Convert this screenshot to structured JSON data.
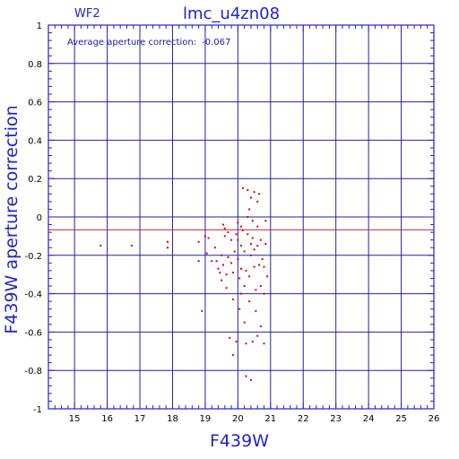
{
  "chart_data": {
    "type": "scatter",
    "panel_label": "WF2",
    "title": "lmc_u4zn08",
    "annotation": {
      "label": "Average aperture correction:",
      "value": "-0.067"
    },
    "xlabel": "F439W",
    "ylabel": "F439W aperture correction",
    "xlim": [
      14.2,
      26
    ],
    "ylim": [
      -1,
      1
    ],
    "x_ticks": [
      "15",
      "16",
      "17",
      "18",
      "19",
      "20",
      "21",
      "22",
      "23",
      "24",
      "25",
      "26"
    ],
    "y_ticks": [
      "-1",
      "-0.8",
      "-0.6",
      "-0.4",
      "-0.2",
      "0",
      "0.2",
      "0.4",
      "0.6",
      "0.8",
      "1"
    ],
    "grid": true,
    "reference_line": {
      "y": -0.067,
      "color": "#dd2222"
    },
    "colors": {
      "points": "#dd0000",
      "axes": "#2222cc",
      "grid": "#2222aa",
      "text": "#2222cc"
    },
    "points": [
      [
        15.8,
        -0.15
      ],
      [
        16.75,
        -0.15
      ],
      [
        17.85,
        -0.13
      ],
      [
        17.85,
        -0.16
      ],
      [
        18.8,
        -0.13
      ],
      [
        18.8,
        -0.23
      ],
      [
        18.9,
        -0.49
      ],
      [
        19.0,
        -0.1
      ],
      [
        19.05,
        -0.19
      ],
      [
        19.1,
        -0.11
      ],
      [
        19.2,
        -0.23
      ],
      [
        19.3,
        -0.16
      ],
      [
        19.35,
        -0.23
      ],
      [
        19.4,
        -0.27
      ],
      [
        19.45,
        -0.29
      ],
      [
        19.5,
        -0.2
      ],
      [
        19.5,
        -0.33
      ],
      [
        19.55,
        -0.04
      ],
      [
        19.55,
        -0.25
      ],
      [
        19.6,
        -0.1
      ],
      [
        19.6,
        -0.06
      ],
      [
        19.65,
        -0.3
      ],
      [
        19.65,
        -0.37
      ],
      [
        19.7,
        -0.21
      ],
      [
        19.7,
        -0.08
      ],
      [
        19.75,
        -0.63
      ],
      [
        19.8,
        -0.12
      ],
      [
        19.8,
        -0.24
      ],
      [
        19.85,
        -0.72
      ],
      [
        19.85,
        -0.29
      ],
      [
        19.85,
        -0.43
      ],
      [
        19.9,
        -0.18
      ],
      [
        19.95,
        -0.09
      ],
      [
        19.95,
        -0.65
      ],
      [
        20.0,
        -0.03
      ],
      [
        20.0,
        -0.12
      ],
      [
        20.0,
        -0.22
      ],
      [
        20.05,
        -0.32
      ],
      [
        20.05,
        -0.48
      ],
      [
        20.1,
        -0.05
      ],
      [
        20.1,
        -0.15
      ],
      [
        20.1,
        -0.27
      ],
      [
        20.1,
        -0.4
      ],
      [
        20.15,
        0.15
      ],
      [
        20.15,
        -0.07
      ],
      [
        20.2,
        -0.18
      ],
      [
        20.2,
        -0.36
      ],
      [
        20.2,
        -0.55
      ],
      [
        20.25,
        -0.28
      ],
      [
        20.25,
        -0.66
      ],
      [
        20.25,
        -0.83
      ],
      [
        20.3,
        0.14
      ],
      [
        20.3,
        0.0
      ],
      [
        20.3,
        -0.09
      ],
      [
        20.35,
        -0.31
      ],
      [
        20.35,
        -0.44
      ],
      [
        20.35,
        0.04
      ],
      [
        20.4,
        0.1
      ],
      [
        20.4,
        -0.14
      ],
      [
        20.4,
        -0.2
      ],
      [
        20.4,
        -0.85
      ],
      [
        20.45,
        -0.02
      ],
      [
        20.45,
        -0.11
      ],
      [
        20.45,
        -0.65
      ],
      [
        20.5,
        0.13
      ],
      [
        20.5,
        -0.17
      ],
      [
        20.5,
        -0.26
      ],
      [
        20.55,
        -0.38
      ],
      [
        20.55,
        -0.49
      ],
      [
        20.6,
        0.08
      ],
      [
        20.6,
        -0.05
      ],
      [
        20.6,
        -0.15
      ],
      [
        20.6,
        -0.62
      ],
      [
        20.65,
        -0.25
      ],
      [
        20.65,
        0.12
      ],
      [
        20.7,
        -0.12
      ],
      [
        20.7,
        -0.36
      ],
      [
        20.7,
        -0.57
      ],
      [
        20.75,
        -0.22
      ],
      [
        20.8,
        -0.26
      ],
      [
        20.8,
        -0.4
      ],
      [
        20.8,
        -0.66
      ],
      [
        20.85,
        -0.14
      ],
      [
        20.85,
        -0.02
      ],
      [
        20.9,
        -0.31
      ]
    ]
  }
}
